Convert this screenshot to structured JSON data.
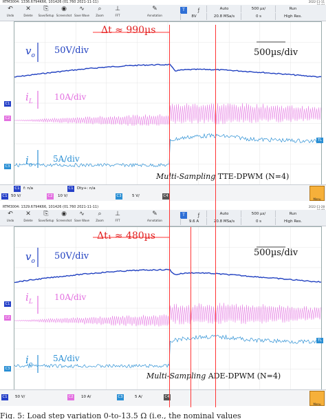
{
  "panels": [
    {
      "header_title": "RTM3004: 1336.6794K66, 101426 (01.760 2021-11-11)",
      "timestamp": [
        "2022-11-11",
        "16:44"
      ],
      "toolbar": [
        {
          "label": "Undo",
          "icon": "undo-icon",
          "glyph": "↶"
        },
        {
          "label": "Delete",
          "icon": "delete-icon",
          "glyph": "✕"
        },
        {
          "label": "Save/Setup",
          "icon": "save-icon",
          "glyph": "⎘"
        },
        {
          "label": "Screenshot",
          "icon": "camera-icon",
          "glyph": "◉"
        },
        {
          "label": "Save Wave",
          "icon": "wave-icon",
          "glyph": "∿"
        },
        {
          "label": "Zoom",
          "icon": "zoom-icon",
          "glyph": "⌕"
        },
        {
          "label": "FFT",
          "icon": "fft-icon",
          "glyph": "⊥"
        },
        {
          "label": "Annotation",
          "icon": "pencil-icon",
          "glyph": "✎"
        }
      ],
      "trigger_channel": "T",
      "top_cells": [
        "Auto",
        "500 µs/",
        "Run"
      ],
      "bottom_cells": [
        "8V",
        "20.8 MSa/s",
        "0 s",
        "High Res."
      ],
      "vo_label": "v",
      "vo_sub": "o",
      "il_label": "i",
      "il_sub": "L",
      "io_label": "i",
      "io_sub": "o",
      "vo_scale": "50V/div",
      "il_scale": "10A/div",
      "io_scale": "5A/div",
      "dt_label": "Δt ≈ 990µs",
      "timescale": "500µs/div",
      "mode_italic": "Multi-Sampling",
      "mode_text": " TTE-DPWM (N=4)",
      "ch_markers": [
        "C1",
        "C2",
        "C3",
        "TL"
      ],
      "status_row1": {
        "f": "f: n/a",
        "dty": "Dty+: n/a"
      },
      "status_row2": [
        {
          "ch": "C1",
          "value": "50 V/",
          "color": "#2540c8"
        },
        {
          "ch": "C2",
          "value": "10 V/",
          "color": "#e36fe0"
        },
        {
          "ch": "C3",
          "value": "5 V/",
          "color": "#2a8fd4"
        },
        {
          "ch": "C4",
          "value": "",
          "color": "#555555"
        }
      ],
      "menu_label": "Menu"
    },
    {
      "header_title": "RTM3004: 1329.6794K66, 101426 (01.760 2021-11-11)",
      "timestamp": [
        "2022-11-28",
        "16:48"
      ],
      "toolbar": [
        {
          "label": "Undo",
          "icon": "undo-icon",
          "glyph": "↶"
        },
        {
          "label": "Delete",
          "icon": "delete-icon",
          "glyph": "✕"
        },
        {
          "label": "Save/Setup",
          "icon": "save-icon",
          "glyph": "⎘"
        },
        {
          "label": "Screenshot",
          "icon": "camera-icon",
          "glyph": "◉"
        },
        {
          "label": "Save Wave",
          "icon": "wave-icon",
          "glyph": "∿"
        },
        {
          "label": "Zoom",
          "icon": "zoom-icon",
          "glyph": "⌕"
        },
        {
          "label": "FFT",
          "icon": "fft-icon",
          "glyph": "⊥"
        },
        {
          "label": "Annotation",
          "icon": "pencil-icon",
          "glyph": "✎"
        }
      ],
      "trigger_channel": "T",
      "top_cells": [
        "Auto",
        "500 µs/",
        "Run"
      ],
      "bottom_cells": [
        "9.6 A",
        "20.8 MSa/s",
        "0 s",
        "High Res."
      ],
      "vo_label": "v",
      "vo_sub": "o",
      "il_label": "i",
      "il_sub": "L",
      "io_label": "i",
      "io_sub": "o",
      "vo_scale": "50V/div",
      "il_scale": "10A/div",
      "io_scale": "5A/div",
      "dt_label": "Δt₁ ≈ 480µs",
      "timescale": "500µs/div",
      "mode_italic": "Multi-Sampling",
      "mode_text": " ADE-DPWM (N=4)",
      "ch_markers": [
        "C1",
        "C2",
        "C3",
        "TL"
      ],
      "status_row1": {
        "f": "",
        "dty": ""
      },
      "status_row2": [
        {
          "ch": "C1",
          "value": "50 V/",
          "color": "#2540c8"
        },
        {
          "ch": "C2",
          "value": "10 A/",
          "color": "#e36fe0"
        },
        {
          "ch": "C3",
          "value": "5 A/",
          "color": "#2a8fd4"
        },
        {
          "ch": "C4",
          "value": "",
          "color": "#555555"
        }
      ],
      "menu_label": "Menu"
    }
  ],
  "colors": {
    "vo": "#1f3fc0",
    "il": "#e36fe0",
    "io": "#2a8fd4",
    "marker": "#ff3333",
    "toolbar_selected": "#2e6fd6"
  },
  "caption": "Fig. 5: Load step variation 0-to-13.5 Ω (i.e., the nominal values"
}
